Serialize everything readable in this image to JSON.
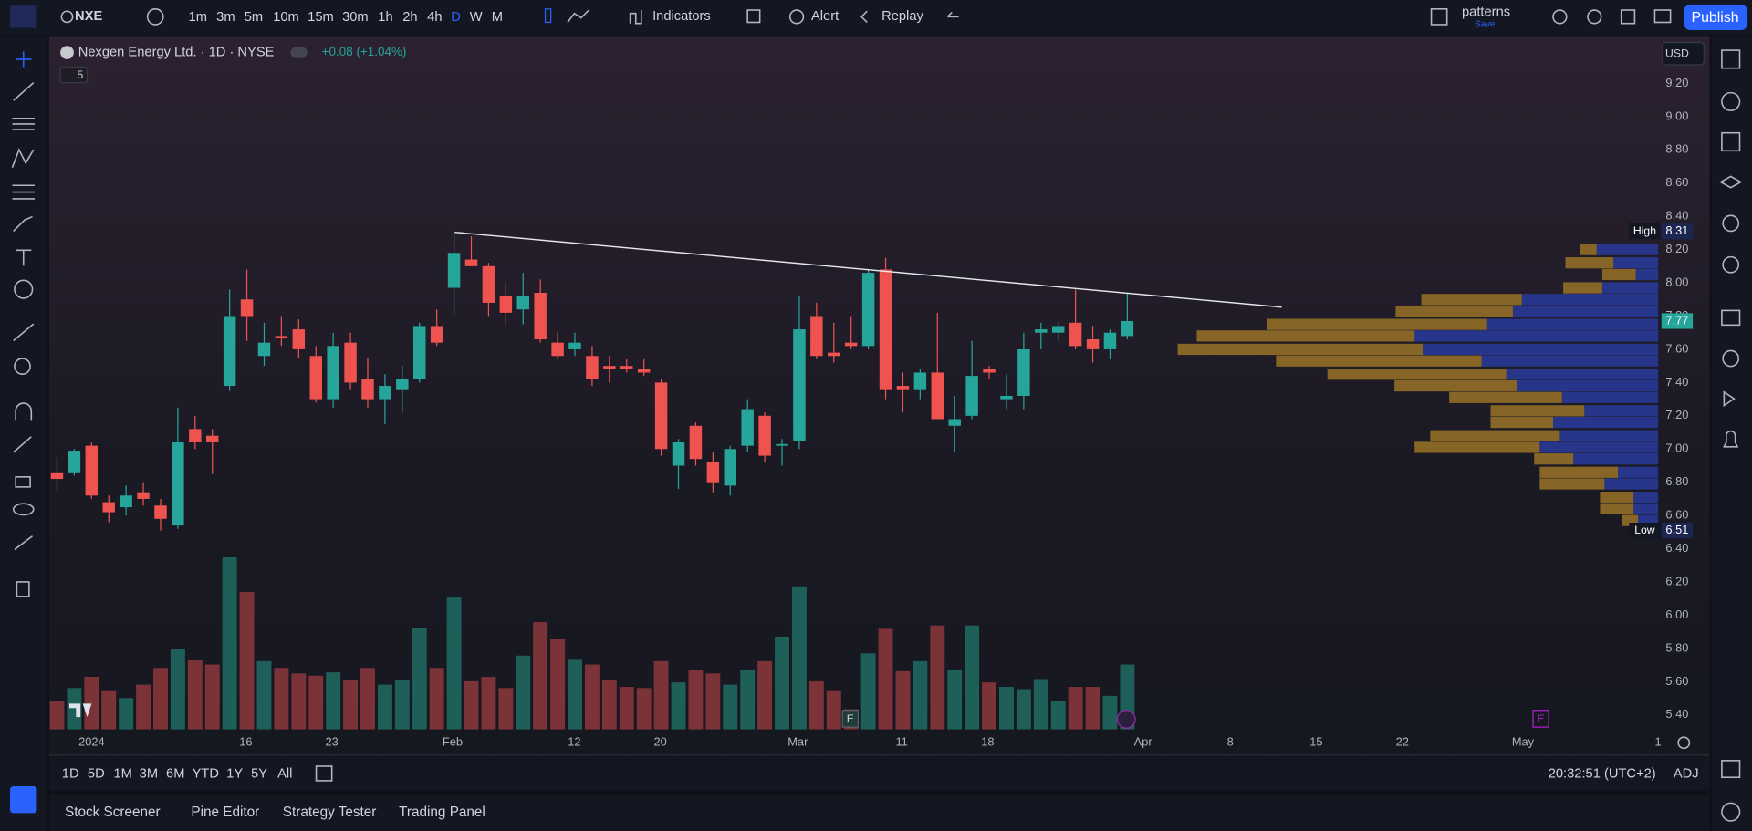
{
  "toolbar": {
    "symbol": "NXE",
    "intervals": [
      "1m",
      "3m",
      "5m",
      "10m",
      "15m",
      "30m",
      "1h",
      "2h",
      "4h",
      "D",
      "W",
      "M"
    ],
    "indicators": "Indicators",
    "alert": "Alert",
    "replay": "Replay",
    "layout_name": "patterns",
    "layout_status": "Save",
    "publish": "Publish"
  },
  "legend": {
    "title": "Nexgen Energy Ltd. · 1D · NYSE",
    "change": "+0.08 (+1.04%)",
    "collapsed_count": "5"
  },
  "chart_data": {
    "type": "candlestick",
    "currency": "USD",
    "up_color": "#26a69a",
    "down_color": "#ef5350",
    "volume_up_color": "#1e5f5a",
    "volume_down_color": "#7c3337",
    "profile_up_color": "#27368a",
    "profile_down_color": "#866526",
    "ylim": [
      5.3,
      9.48
    ],
    "yticks": [
      {
        "value": 9.2,
        "label": "9.20"
      },
      {
        "value": 9.0,
        "label": "9.00"
      },
      {
        "value": 8.8,
        "label": "8.80"
      },
      {
        "value": 8.6,
        "label": "8.60"
      },
      {
        "value": 8.4,
        "label": "8.40"
      },
      {
        "value": 8.2,
        "label": "8.20"
      },
      {
        "value": 8.0,
        "label": "8.00"
      },
      {
        "value": 7.8,
        "label": "7.80"
      },
      {
        "value": 7.6,
        "label": "7.60"
      },
      {
        "value": 7.4,
        "label": "7.40"
      },
      {
        "value": 7.2,
        "label": "7.20"
      },
      {
        "value": 7.0,
        "label": "7.00"
      },
      {
        "value": 6.8,
        "label": "6.80"
      },
      {
        "value": 6.6,
        "label": "6.60"
      },
      {
        "value": 6.4,
        "label": "6.40"
      },
      {
        "value": 6.2,
        "label": "6.20"
      },
      {
        "value": 6.0,
        "label": "6.00"
      },
      {
        "value": 5.8,
        "label": "5.80"
      },
      {
        "value": 5.6,
        "label": "5.60"
      },
      {
        "value": 5.4,
        "label": "5.40"
      }
    ],
    "grid": false,
    "xticks": [
      "2024",
      "16",
      "23",
      "Feb",
      "12",
      "20",
      "Mar",
      "11",
      "18",
      "Apr",
      "8",
      "15",
      "22",
      "May",
      "1"
    ],
    "open": [
      6.86,
      6.86,
      7.02,
      6.68,
      6.65,
      6.74,
      6.66,
      6.54,
      7.12,
      7.08,
      7.38,
      7.9,
      7.56,
      7.68,
      7.72,
      7.56,
      7.3,
      7.64,
      7.42,
      7.3,
      7.36,
      7.42,
      7.74,
      7.97,
      8.14,
      8.1,
      7.92,
      7.84,
      7.94,
      7.64,
      7.6,
      7.56,
      7.5,
      7.5,
      7.48,
      7.4,
      6.9,
      7.14,
      6.92,
      6.78,
      7.02,
      7.2,
      7.02,
      7.05,
      7.8,
      7.58,
      7.64,
      7.62,
      8.08,
      7.38,
      7.36,
      7.46,
      7.14,
      7.2,
      7.48,
      7.3,
      7.32,
      7.7,
      7.7,
      7.76,
      7.66,
      7.6,
      7.68
    ],
    "high": [
      6.95,
      7.0,
      7.04,
      6.72,
      6.78,
      6.8,
      6.7,
      7.25,
      7.2,
      7.12,
      7.96,
      8.08,
      7.76,
      7.8,
      7.78,
      7.62,
      7.7,
      7.7,
      7.55,
      7.45,
      7.5,
      7.76,
      7.84,
      8.31,
      8.28,
      8.12,
      8.0,
      8.06,
      8.02,
      7.7,
      7.7,
      7.62,
      7.56,
      7.54,
      7.54,
      7.42,
      7.06,
      7.16,
      6.98,
      7.02,
      7.3,
      7.22,
      7.06,
      7.92,
      7.88,
      7.76,
      7.8,
      8.08,
      8.15,
      7.46,
      7.48,
      7.82,
      7.32,
      7.65,
      7.5,
      7.45,
      7.7,
      7.76,
      7.76,
      7.96,
      7.74,
      7.72,
      7.94
    ],
    "low": [
      6.75,
      6.84,
      6.7,
      6.56,
      6.6,
      6.66,
      6.51,
      6.52,
      7.0,
      6.85,
      7.35,
      7.65,
      7.5,
      7.62,
      7.55,
      7.28,
      7.25,
      7.36,
      7.25,
      7.15,
      7.22,
      7.4,
      7.62,
      7.8,
      8.1,
      7.8,
      7.75,
      7.75,
      7.64,
      7.54,
      7.56,
      7.38,
      7.4,
      7.46,
      7.44,
      6.96,
      6.76,
      6.9,
      6.74,
      6.72,
      6.98,
      6.92,
      6.9,
      7.0,
      7.54,
      7.52,
      7.6,
      7.6,
      7.3,
      7.22,
      7.3,
      7.2,
      6.98,
      7.18,
      7.42,
      7.24,
      7.24,
      7.6,
      7.65,
      7.6,
      7.52,
      7.54,
      7.66
    ],
    "close": [
      6.82,
      6.99,
      6.72,
      6.62,
      6.72,
      6.7,
      6.58,
      7.04,
      7.04,
      7.04,
      7.8,
      7.8,
      7.64,
      7.67,
      7.6,
      7.3,
      7.62,
      7.4,
      7.3,
      7.38,
      7.42,
      7.74,
      7.64,
      8.18,
      8.1,
      7.88,
      7.82,
      7.92,
      7.66,
      7.56,
      7.64,
      7.42,
      7.48,
      7.48,
      7.46,
      7.0,
      7.04,
      6.94,
      6.8,
      7.0,
      7.24,
      6.96,
      7.03,
      7.72,
      7.56,
      7.56,
      7.62,
      8.06,
      7.36,
      7.36,
      7.46,
      7.18,
      7.18,
      7.44,
      7.46,
      7.32,
      7.6,
      7.72,
      7.74,
      7.62,
      7.6,
      7.7,
      7.77
    ],
    "volume": [
      25,
      37,
      47,
      35,
      28,
      40,
      55,
      72,
      62,
      58,
      154,
      123,
      61,
      55,
      50,
      48,
      51,
      44,
      55,
      40,
      44,
      91,
      55,
      118,
      43,
      47,
      37,
      66,
      96,
      81,
      63,
      58,
      44,
      38,
      37,
      61,
      42,
      53,
      50,
      40,
      53,
      61,
      83,
      128,
      43,
      35,
      18,
      68,
      90,
      52,
      61,
      93,
      53,
      93,
      42,
      38,
      36,
      45,
      25,
      38,
      38,
      30,
      58
    ],
    "volume_profile": {
      "prices": [
        8.2,
        8.12,
        8.05,
        7.97,
        7.9,
        7.83,
        7.75,
        7.68,
        7.6,
        7.53,
        7.45,
        7.38,
        7.31,
        7.23,
        7.16,
        7.08,
        7.01,
        6.94,
        6.86,
        6.79,
        6.71,
        6.64,
        6.57
      ],
      "up": [
        55,
        40,
        20,
        50,
        122,
        130,
        153,
        218,
        210,
        158,
        136,
        126,
        86,
        66,
        94,
        88,
        106,
        76,
        36,
        48,
        22,
        22,
        18
      ],
      "down": [
        15,
        43,
        30,
        35,
        90,
        105,
        197,
        195,
        220,
        184,
        160,
        110,
        101,
        84,
        56,
        116,
        112,
        35,
        70,
        58,
        30,
        30,
        14
      ]
    },
    "high_badge": {
      "name": "High",
      "value": 8.31
    },
    "low_badge": {
      "name": "Low",
      "value": 6.51
    },
    "last_price": 7.77,
    "earnings_marker": "E"
  },
  "range_bar": {
    "ranges": [
      "1D",
      "5D",
      "1M",
      "3M",
      "6M",
      "YTD",
      "1Y",
      "5Y",
      "All"
    ],
    "clock": "20:32:51 (UTC+2)",
    "adj": "ADJ"
  },
  "panels": [
    "Stock Screener",
    "Pine Editor",
    "Strategy Tester",
    "Trading Panel"
  ]
}
